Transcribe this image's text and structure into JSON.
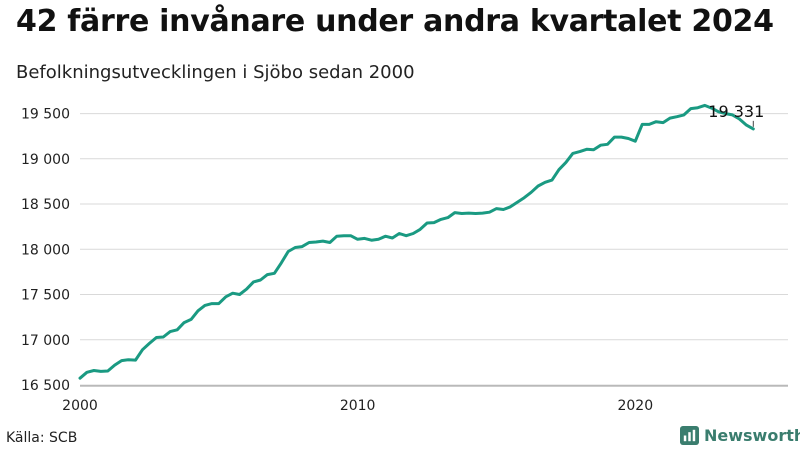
{
  "title": "42 färre invånare under andra kvartalet 2024",
  "subtitle": "Befolkningsutvecklingen i Sjöbo sedan 2000",
  "source": "Källa: SCB",
  "brand": "Newsworthy",
  "colors": {
    "line": "#1a9a82",
    "grid": "#d9d9d9",
    "text": "#222222",
    "brand": "#3a7d6e"
  },
  "chart_data": {
    "type": "line",
    "title": "42 färre invånare under andra kvartalet 2024",
    "subtitle": "Befolkningsutvecklingen i Sjöbo sedan 2000",
    "xlabel": "",
    "ylabel": "",
    "xlim": [
      2000,
      2025.5
    ],
    "ylim": [
      16500,
      19650
    ],
    "yticks": [
      16500,
      17000,
      17500,
      18000,
      18500,
      19000,
      19500
    ],
    "ytick_labels": [
      "16 500",
      "17 000",
      "17 500",
      "18 000",
      "18 500",
      "19 000",
      "19 500"
    ],
    "xticks": [
      2000,
      2010,
      2020
    ],
    "xtick_labels": [
      "2000",
      "2010",
      "2020"
    ],
    "grid": true,
    "end_label": "19 331",
    "series": [
      {
        "name": "Invånare",
        "x": [
          2000.0,
          2000.25,
          2000.5,
          2000.75,
          2001.0,
          2001.25,
          2001.5,
          2001.75,
          2002.0,
          2002.25,
          2002.5,
          2002.75,
          2003.0,
          2003.25,
          2003.5,
          2003.75,
          2004.0,
          2004.25,
          2004.5,
          2004.75,
          2005.0,
          2005.25,
          2005.5,
          2005.75,
          2006.0,
          2006.25,
          2006.5,
          2006.75,
          2007.0,
          2007.25,
          2007.5,
          2007.75,
          2008.0,
          2008.25,
          2008.5,
          2008.75,
          2009.0,
          2009.25,
          2009.5,
          2009.75,
          2010.0,
          2010.25,
          2010.5,
          2010.75,
          2011.0,
          2011.25,
          2011.5,
          2011.75,
          2012.0,
          2012.25,
          2012.5,
          2012.75,
          2013.0,
          2013.25,
          2013.5,
          2013.75,
          2014.0,
          2014.25,
          2014.5,
          2014.75,
          2015.0,
          2015.25,
          2015.5,
          2015.75,
          2016.0,
          2016.25,
          2016.5,
          2016.75,
          2017.0,
          2017.25,
          2017.5,
          2017.75,
          2018.0,
          2018.25,
          2018.5,
          2018.75,
          2019.0,
          2019.25,
          2019.5,
          2019.75,
          2020.0,
          2020.25,
          2020.5,
          2020.75,
          2021.0,
          2021.25,
          2021.5,
          2021.75,
          2022.0,
          2022.25,
          2022.5,
          2022.75,
          2023.0,
          2023.25,
          2023.5,
          2023.75,
          2024.0,
          2024.25
        ],
        "values": [
          16575,
          16640,
          16660,
          16650,
          16655,
          16720,
          16770,
          16780,
          16775,
          16890,
          16960,
          17025,
          17030,
          17090,
          17110,
          17190,
          17225,
          17320,
          17380,
          17400,
          17400,
          17475,
          17515,
          17500,
          17560,
          17640,
          17660,
          17720,
          17735,
          17850,
          17975,
          18020,
          18030,
          18075,
          18080,
          18090,
          18075,
          18145,
          18150,
          18150,
          18110,
          18120,
          18100,
          18110,
          18145,
          18125,
          18175,
          18150,
          18175,
          18220,
          18290,
          18295,
          18330,
          18350,
          18405,
          18395,
          18400,
          18395,
          18400,
          18410,
          18450,
          18440,
          18470,
          18520,
          18570,
          18630,
          18700,
          18740,
          18765,
          18880,
          18960,
          19060,
          19080,
          19105,
          19100,
          19150,
          19160,
          19240,
          19240,
          19225,
          19195,
          19380,
          19380,
          19410,
          19400,
          19450,
          19465,
          19485,
          19555,
          19565,
          19590,
          19560,
          19520,
          19500,
          19485,
          19440,
          19373,
          19331
        ]
      }
    ]
  }
}
